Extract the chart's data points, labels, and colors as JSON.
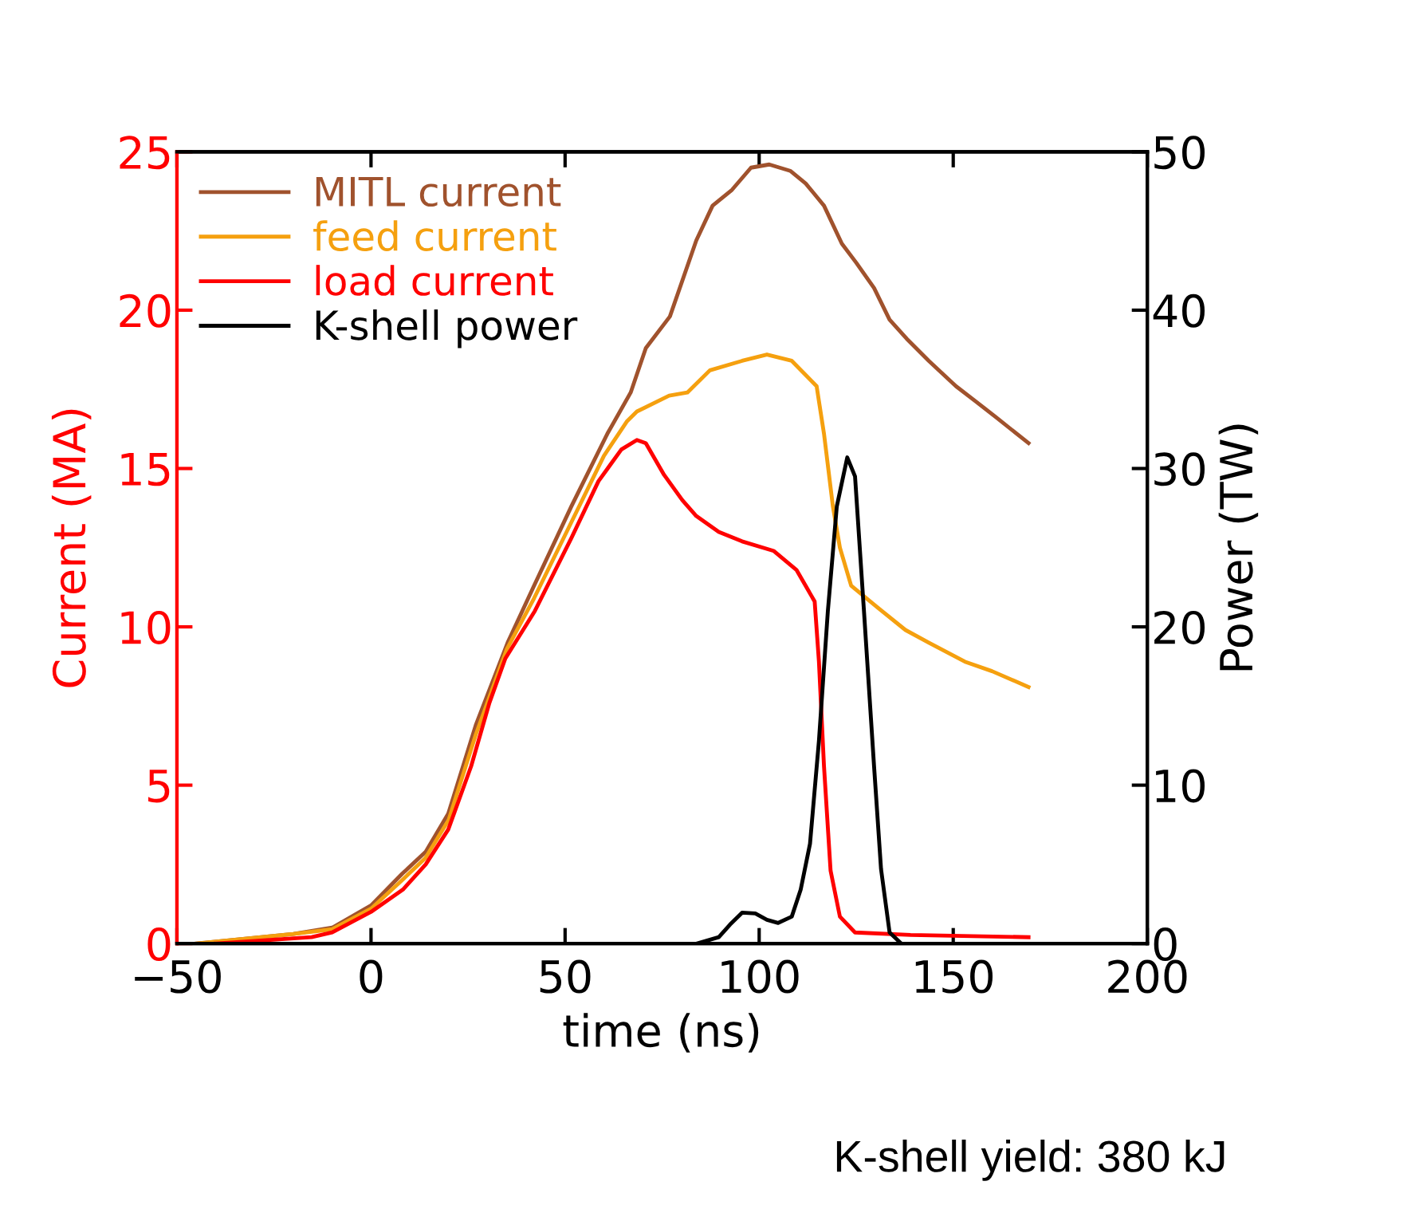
{
  "chart_data": {
    "type": "line",
    "xlabel": "time (ns)",
    "ylabel": "Current (MA)",
    "y2label": "Power (TW)",
    "xlim": [
      -50,
      200
    ],
    "xticks": [
      {
        "value": -50,
        "label": "−50"
      },
      0,
      50,
      100,
      150,
      200
    ],
    "ylim": [
      0,
      25
    ],
    "yticks": [
      0,
      5,
      10,
      15,
      20,
      25
    ],
    "y2lim": [
      0,
      50
    ],
    "y2ticks": [
      0,
      10,
      20,
      30,
      40,
      50
    ],
    "grid": false,
    "legend": "top left",
    "line_style": "solid",
    "marker": "none",
    "annotations": [
      "K-shell yield: 380 kJ"
    ],
    "series": [
      {
        "name": "MITL current",
        "color": "#a0522d",
        "x": [
          -45,
          -20,
          -10,
          0,
          8,
          14.1,
          19.9,
          27,
          35.2,
          42,
          51.6,
          60.9,
          66.9,
          70.8,
          77,
          83.8,
          88,
          93,
          97.9,
          102.6,
          108,
          112,
          116.7,
          121.3,
          125,
          129.6,
          133.6,
          138,
          143.7,
          150.7,
          156,
          161.2,
          169.4
        ],
        "values": [
          0,
          0.3,
          0.5,
          1.2,
          2.2,
          2.9,
          4.1,
          6.9,
          9.5,
          11.3,
          13.8,
          16.1,
          17.4,
          18.8,
          19.8,
          22.2,
          23.3,
          23.8,
          24.5,
          24.6,
          24.4,
          24.0,
          23.3,
          22.1,
          21.5,
          20.7,
          19.7,
          19.1,
          18.4,
          17.6,
          17.1,
          16.6,
          15.8
        ]
      },
      {
        "name": "feed current",
        "color": "#f5a00f",
        "x": [
          -45,
          -20,
          -10,
          0,
          8,
          14,
          20,
          27,
          35,
          42,
          51.6,
          60,
          66,
          68.5,
          76.8,
          81.5,
          87.3,
          95.6,
          102,
          108.4,
          114.8,
          116.7,
          119,
          120.8,
          123.7,
          129.6,
          137.7,
          143.7,
          153,
          160,
          169.4
        ],
        "values": [
          0,
          0.3,
          0.45,
          1.1,
          2.0,
          2.7,
          3.9,
          6.6,
          9.3,
          10.9,
          13.3,
          15.4,
          16.5,
          16.8,
          17.3,
          17.4,
          18.1,
          18.4,
          18.6,
          18.4,
          17.6,
          16.1,
          13.8,
          12.5,
          11.3,
          10.7,
          9.9,
          9.5,
          8.9,
          8.6,
          8.1
        ]
      },
      {
        "name": "load current",
        "color": "#ff0000",
        "x": [
          -40,
          -15.3,
          -10,
          0,
          8.2,
          14.1,
          19.9,
          25.8,
          30.5,
          34.6,
          42.2,
          51.6,
          58.6,
          64.5,
          68.5,
          70.8,
          75.5,
          80.2,
          83.8,
          89.6,
          95.6,
          103.7,
          109.6,
          114.3,
          115.4,
          116.7,
          118.4,
          120.8,
          124.7,
          139,
          169.4
        ],
        "values": [
          0,
          0.2,
          0.35,
          1.0,
          1.7,
          2.5,
          3.6,
          5.6,
          7.6,
          9.0,
          10.5,
          12.8,
          14.6,
          15.6,
          15.9,
          15.8,
          14.8,
          14.0,
          13.5,
          13.0,
          12.7,
          12.4,
          11.8,
          10.8,
          8.9,
          5.6,
          2.3,
          0.85,
          0.35,
          0.27,
          0.2
        ]
      },
      {
        "name": "K-shell power",
        "color": "#000000",
        "axis": "y2",
        "x": [
          84,
          89.6,
          92.5,
          95.6,
          99,
          102,
          104.9,
          108.4,
          110.7,
          113.1,
          115.4,
          117.7,
          120,
          122.7,
          124.7,
          127,
          129.6,
          131.4,
          133.6,
          136.6
        ],
        "values": [
          0,
          0.4,
          1.2,
          1.95,
          1.9,
          1.5,
          1.3,
          1.7,
          3.4,
          6.3,
          12.8,
          21,
          27.6,
          30.7,
          29.5,
          21,
          11.2,
          4.7,
          0.7,
          0
        ]
      }
    ]
  }
}
